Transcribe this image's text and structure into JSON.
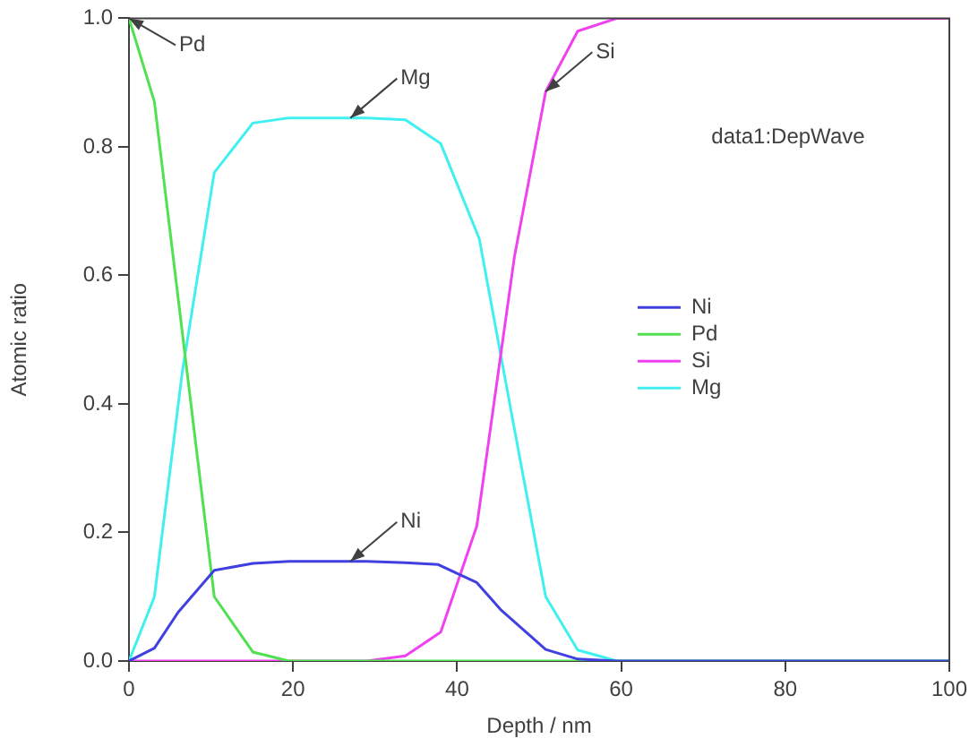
{
  "chart_data": {
    "type": "line",
    "xlabel": "Depth / nm",
    "ylabel": "Atomic ratio",
    "xlim": [
      0,
      100
    ],
    "xticks": [
      0,
      20,
      40,
      60,
      80,
      100
    ],
    "ylim": [
      0,
      1
    ],
    "yticks": [
      {
        "value": 0,
        "label": "0.0"
      },
      {
        "value": 0.2,
        "label": "0.2"
      },
      {
        "value": 0.4,
        "label": "0.4"
      },
      {
        "value": 0.6,
        "label": "0.6"
      },
      {
        "value": 0.8,
        "label": "0.8"
      },
      {
        "value": 1,
        "label": "1.0"
      }
    ],
    "grid": false,
    "legend": "right",
    "marker": "none",
    "line_style": "solid",
    "series": [
      {
        "name": "Ni",
        "color": "#4040e0",
        "x": [
          0,
          3.1,
          6,
          10.4,
          15.1,
          19.5,
          24,
          29,
          33.7,
          37.7,
          42.4,
          45.3,
          50.8,
          54.7,
          59.5,
          100
        ],
        "values": [
          0,
          0.02,
          0.076,
          0.141,
          0.152,
          0.155,
          0.155,
          0.155,
          0.153,
          0.15,
          0.122,
          0.08,
          0.018,
          0.003,
          0,
          0
        ]
      },
      {
        "name": "Pd",
        "color": "#50e050",
        "x": [
          0,
          3.1,
          10.4,
          15.1,
          19.5,
          100
        ],
        "values": [
          1,
          0.87,
          0.1,
          0.014,
          0,
          0
        ]
      },
      {
        "name": "Si",
        "color": "#f040f0",
        "x": [
          0,
          29,
          33.7,
          38,
          42.4,
          47,
          50.8,
          54.7,
          59.5,
          100
        ],
        "values": [
          0,
          0,
          0.008,
          0.045,
          0.21,
          0.63,
          0.886,
          0.98,
          1,
          1
        ]
      },
      {
        "name": "Mg",
        "color": "#40f0f0",
        "x": [
          0,
          3.1,
          6.5,
          10.4,
          15.1,
          19.5,
          24,
          29,
          33.7,
          38,
          42.7,
          47,
          50.8,
          54.7,
          59.5,
          100
        ],
        "values": [
          0,
          0.1,
          0.45,
          0.76,
          0.837,
          0.845,
          0.845,
          0.845,
          0.842,
          0.805,
          0.657,
          0.36,
          0.1,
          0.017,
          0,
          0
        ]
      }
    ],
    "annotations": [
      {
        "text": "Pd",
        "x": 0,
        "y": 1
      },
      {
        "text": "Mg",
        "x": 27,
        "y": 0.845
      },
      {
        "text": "Si",
        "x": 50.8,
        "y": 0.886
      },
      {
        "text": "Ni",
        "x": 27,
        "y": 0.155
      },
      "data1:DepWave"
    ]
  }
}
